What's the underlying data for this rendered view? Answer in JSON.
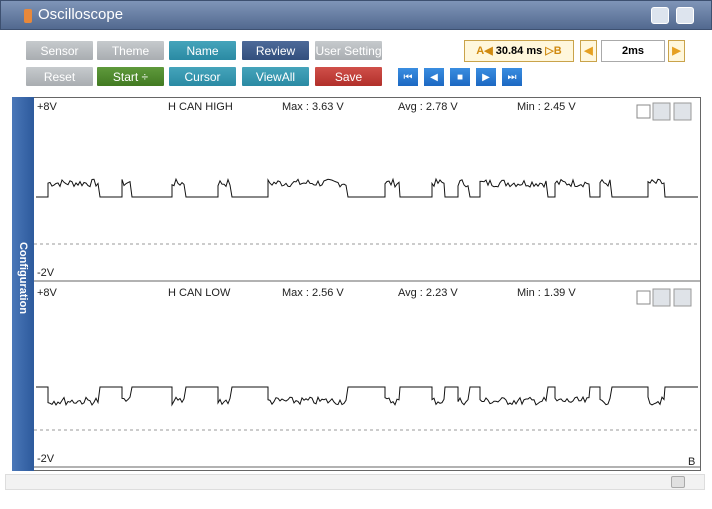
{
  "window": {
    "title": "Oscilloscope"
  },
  "toolbar": {
    "buttons": [
      "Sensor",
      "Theme",
      "Name",
      "Review",
      "User Setting",
      "Reset",
      "Start",
      "Cursor",
      "ViewAll",
      "Save"
    ]
  },
  "cursor": {
    "a_label": "A",
    "value": "30.84 ms",
    "b_label": "B"
  },
  "timebase": "2ms",
  "sidebar": "Configuration",
  "channels": [
    {
      "top": "+8V",
      "name": "H CAN HIGH",
      "max": "Max : 3.63 V",
      "avg": "Avg : 2.78 V",
      "min": "Min : 2.45 V",
      "bottom": "-2V"
    },
    {
      "top": "+8V",
      "name": "H CAN LOW",
      "max": "Max : 2.56 V",
      "avg": "Avg : 2.23 V",
      "min": "Min : 1.39 V",
      "bottom": "-2V"
    }
  ],
  "marker": "B"
}
